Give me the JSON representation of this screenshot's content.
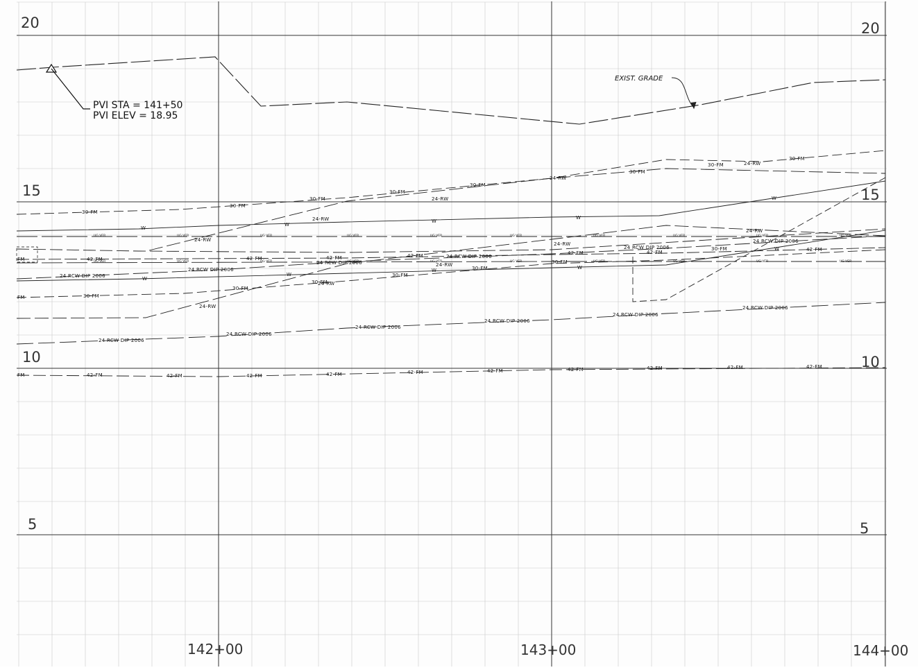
{
  "profile": {
    "elevation_labels_left": [
      "20",
      "15",
      "10",
      "5"
    ],
    "elevation_labels_right": [
      "20",
      "15",
      "10",
      "5"
    ],
    "stations": [
      "142+00",
      "143+00",
      "144+00"
    ],
    "pvi": {
      "sta_line": "PVI STA = 141+50",
      "elev_line": "PVI ELEV = 18.95"
    },
    "exist_grade_label": "EXIST. GRADE",
    "line_labels": {
      "fm30": "30-FM",
      "fm42": "42-FM",
      "rw24": "24-RW",
      "water": "W",
      "rcw": "24 RCW DIP 2006",
      "uv": "UG VER",
      "fm_short": "FM"
    }
  }
}
